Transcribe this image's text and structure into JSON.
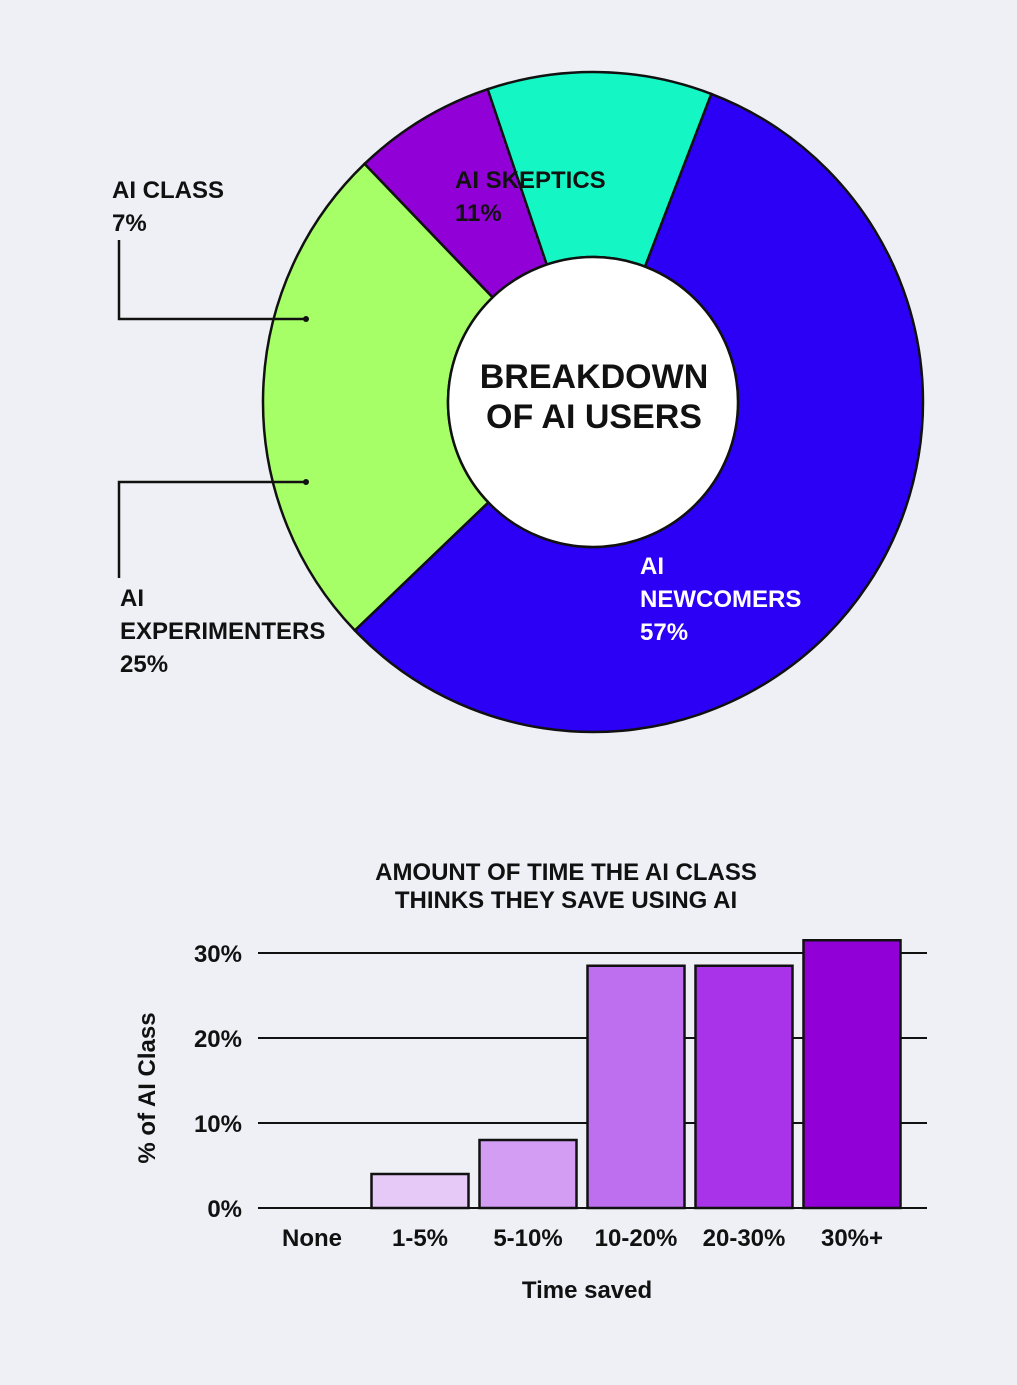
{
  "chart_data": [
    {
      "type": "pie",
      "variant": "donut",
      "center_title_lines": [
        "BREAKDOWN",
        "OF AI USERS"
      ],
      "slices": [
        {
          "label_lines": [
            "AI",
            "NEWCOMERS"
          ],
          "percent_label": "57%",
          "value": 57,
          "color": "#2b00f5"
        },
        {
          "label_lines": [
            "AI",
            "EXPERIMENTERS"
          ],
          "percent_label": "25%",
          "value": 25,
          "color": "#a6ff66"
        },
        {
          "label_lines": [
            "AI CLASS"
          ],
          "percent_label": "7%",
          "value": 7,
          "color": "#9200d8"
        },
        {
          "label_lines": [
            "AI SKEPTICS"
          ],
          "percent_label": "11%",
          "value": 11,
          "color": "#14f7c5"
        }
      ]
    },
    {
      "type": "bar",
      "title_lines": [
        "AMOUNT OF TIME THE AI CLASS",
        "THINKS THEY SAVE USING AI"
      ],
      "xlabel": "Time saved",
      "ylabel": "% of AI Class",
      "ylim": [
        0,
        30
      ],
      "y_ticks": [
        0,
        10,
        20,
        30
      ],
      "y_tick_labels": [
        "0%",
        "10%",
        "20%",
        "30%"
      ],
      "grid": true,
      "categories": [
        "None",
        "1-5%",
        "5-10%",
        "10-20%",
        "20-30%",
        "30%+"
      ],
      "values": [
        0,
        4,
        8,
        28.5,
        28.5,
        31.5
      ],
      "colors": [
        "#e6c9f7",
        "#e6c9f7",
        "#d39df4",
        "#bd6ff0",
        "#a833e8",
        "#9200d8"
      ]
    }
  ]
}
